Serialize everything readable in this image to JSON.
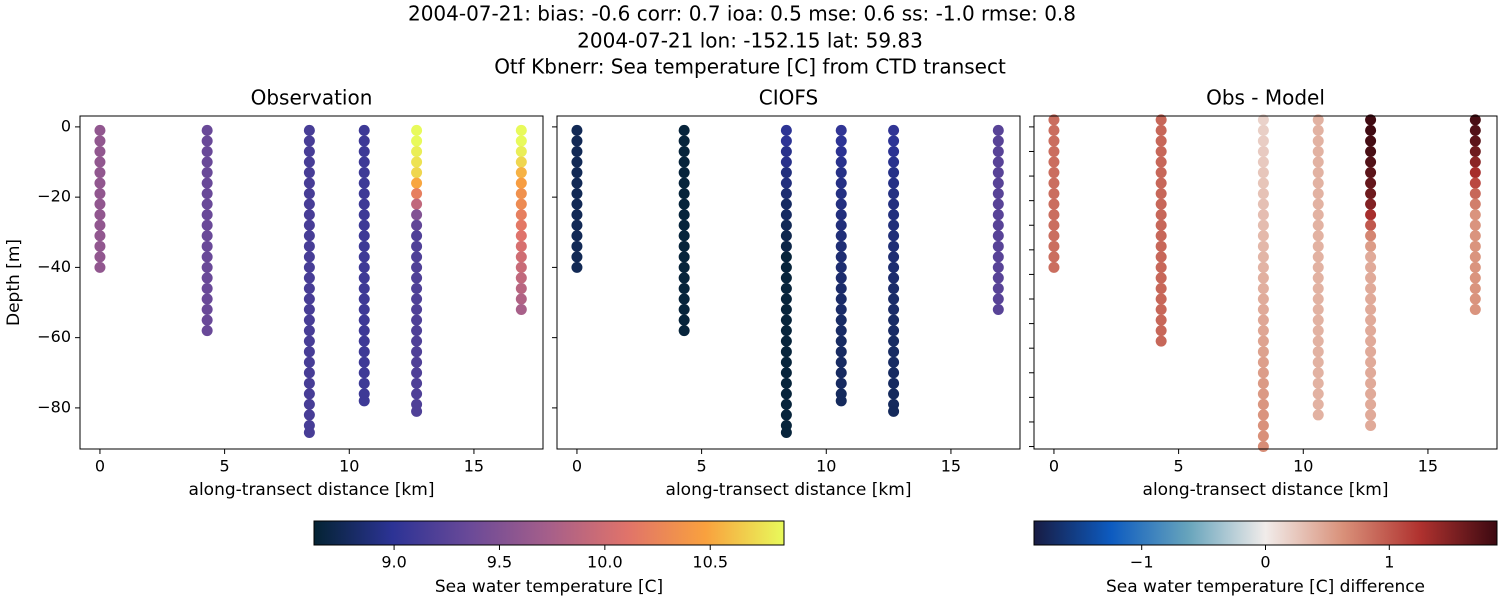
{
  "suptitle": [
    "2004-07-21: bias: -0.6  corr: 0.7  ioa: 0.5  mse: 0.6  ss: -1.0  rmse: 0.8",
    "2004-07-21 lon: -152.15 lat: 59.83",
    "Otf Kbnerr: Sea temperature [C] from CTD transect"
  ],
  "chart_data": [
    {
      "type": "scatter",
      "title": "Observation",
      "xlabel": "along-transect distance [km]",
      "ylabel": "Depth [m]",
      "xlim": [
        -0.8,
        17.77
      ],
      "ylim": [
        -91.7,
        3.1
      ],
      "xticks": [
        0,
        5,
        10,
        15
      ],
      "yticks": [
        0,
        {
          "value": -20,
          "label": "−20"
        },
        {
          "value": -40,
          "label": "−40"
        },
        {
          "value": -60,
          "label": "−60"
        },
        {
          "value": -80,
          "label": "−80"
        }
      ],
      "ytick_labels": true,
      "clim": [
        8.62,
        10.85
      ],
      "colormap": [
        "#042333",
        "#2c3395",
        "#6b4a98",
        "#a65f8a",
        "#e0736a",
        "#f9a13e",
        "#e8fa5b"
      ],
      "colorbar": {
        "label": "Sea water temperature [C]",
        "ticks": [
          {
            "value": 9,
            "label": "9.0"
          },
          9.5,
          {
            "value": 10,
            "label": "10.0"
          },
          10.5
        ]
      },
      "series": [
        {
          "x": 0,
          "y": [
            -1,
            -4,
            -7,
            -10,
            -13,
            -16,
            -19,
            -22,
            -25,
            -28,
            -31,
            -34,
            -37,
            -40
          ],
          "values": [
            9.6,
            9.6,
            9.6,
            9.6,
            9.6,
            9.6,
            9.6,
            9.6,
            9.6,
            9.6,
            9.6,
            9.6,
            9.6,
            9.6
          ]
        },
        {
          "x": 4.3,
          "y": [
            -1,
            -4,
            -7,
            -10,
            -13,
            -16,
            -19,
            -22,
            -25,
            -28,
            -31,
            -34,
            -37,
            -40,
            -43,
            -46,
            -49,
            -52,
            -55,
            -58
          ],
          "values": [
            9.35,
            9.35,
            9.35,
            9.35,
            9.35,
            9.35,
            9.35,
            9.35,
            9.35,
            9.35,
            9.35,
            9.35,
            9.35,
            9.35,
            9.35,
            9.35,
            9.35,
            9.35,
            9.35,
            9.35
          ]
        },
        {
          "x": 8.4,
          "y": [
            -1,
            -4,
            -7,
            -10,
            -13,
            -16,
            -19,
            -22,
            -25,
            -28,
            -31,
            -34,
            -37,
            -40,
            -43,
            -46,
            -49,
            -52,
            -55,
            -58,
            -61,
            -64,
            -67,
            -70,
            -73,
            -76,
            -79,
            -82,
            -85,
            -87
          ],
          "values": [
            9.15,
            9.15,
            9.15,
            9.15,
            9.15,
            9.15,
            9.15,
            9.15,
            9.15,
            9.15,
            9.15,
            9.15,
            9.15,
            9.15,
            9.15,
            9.15,
            9.15,
            9.15,
            9.15,
            9.15,
            9.15,
            9.15,
            9.15,
            9.15,
            9.15,
            9.15,
            9.15,
            9.15,
            9.15,
            9.15
          ]
        },
        {
          "x": 10.6,
          "y": [
            -1,
            -4,
            -7,
            -10,
            -13,
            -16,
            -19,
            -22,
            -25,
            -28,
            -31,
            -34,
            -37,
            -40,
            -43,
            -46,
            -49,
            -52,
            -55,
            -58,
            -61,
            -64,
            -67,
            -70,
            -73,
            -76,
            -78
          ],
          "values": [
            9.1,
            9.1,
            9.1,
            9.1,
            9.1,
            9.1,
            9.1,
            9.1,
            9.1,
            9.1,
            9.1,
            9.1,
            9.1,
            9.1,
            9.1,
            9.1,
            9.1,
            9.1,
            9.1,
            9.1,
            9.1,
            9.1,
            9.1,
            9.1,
            9.1,
            9.1,
            9.1
          ]
        },
        {
          "x": 12.7,
          "y": [
            -1,
            -4,
            -7,
            -10,
            -13,
            -16,
            -19,
            -22,
            -25,
            -28,
            -31,
            -34,
            -37,
            -40,
            -43,
            -46,
            -49,
            -52,
            -55,
            -58,
            -61,
            -64,
            -67,
            -70,
            -73,
            -76,
            -79,
            -81
          ],
          "values": [
            10.85,
            10.85,
            10.8,
            10.75,
            10.7,
            10.5,
            10.2,
            9.9,
            9.5,
            9.3,
            9.2,
            9.2,
            9.2,
            9.2,
            9.2,
            9.2,
            9.2,
            9.2,
            9.2,
            9.2,
            9.2,
            9.2,
            9.2,
            9.2,
            9.2,
            9.2,
            9.2,
            9.2
          ]
        },
        {
          "x": 16.9,
          "y": [
            -1,
            -4,
            -7,
            -10,
            -13,
            -16,
            -19,
            -22,
            -25,
            -28,
            -31,
            -34,
            -37,
            -40,
            -43,
            -46,
            -49,
            -52
          ],
          "values": [
            10.85,
            10.85,
            10.8,
            10.7,
            10.55,
            10.45,
            10.35,
            10.3,
            10.2,
            10.15,
            10.1,
            10.05,
            10.0,
            9.95,
            9.9,
            9.85,
            9.8,
            9.75
          ]
        }
      ]
    },
    {
      "type": "scatter",
      "title": "CIOFS",
      "xlabel": "along-transect distance [km]",
      "xlim": [
        -0.8,
        17.77
      ],
      "ylim": [
        -91.7,
        3.1
      ],
      "xticks": [
        0,
        5,
        10,
        15
      ],
      "yticks": [
        0,
        -20,
        -40,
        -60,
        -80
      ],
      "ytick_labels": false,
      "clim": [
        8.62,
        10.85
      ],
      "colormap": [
        "#042333",
        "#2c3395",
        "#6b4a98",
        "#a65f8a",
        "#e0736a",
        "#f9a13e",
        "#e8fa5b"
      ],
      "series": [
        {
          "x": 0,
          "y": [
            -1,
            -4,
            -7,
            -10,
            -13,
            -16,
            -19,
            -22,
            -25,
            -28,
            -31,
            -34,
            -37,
            -40
          ],
          "values": [
            8.75,
            8.75,
            8.75,
            8.75,
            8.75,
            8.75,
            8.75,
            8.75,
            8.75,
            8.75,
            8.75,
            8.75,
            8.75,
            8.75
          ]
        },
        {
          "x": 4.3,
          "y": [
            -1,
            -4,
            -7,
            -10,
            -13,
            -16,
            -19,
            -22,
            -25,
            -28,
            -31,
            -34,
            -37,
            -40,
            -43,
            -46,
            -49,
            -52,
            -55,
            -58
          ],
          "values": [
            8.65,
            8.65,
            8.65,
            8.65,
            8.65,
            8.65,
            8.65,
            8.65,
            8.65,
            8.65,
            8.65,
            8.65,
            8.65,
            8.65,
            8.65,
            8.65,
            8.65,
            8.65,
            8.65,
            8.65
          ]
        },
        {
          "x": 8.4,
          "y": [
            -1,
            -4,
            -7,
            -10,
            -13,
            -16,
            -19,
            -22,
            -25,
            -28,
            -31,
            -34,
            -37,
            -40,
            -43,
            -46,
            -49,
            -52,
            -55,
            -58,
            -61,
            -64,
            -67,
            -70,
            -73,
            -76,
            -79,
            -82,
            -85,
            -87
          ],
          "values": [
            9.0,
            9.0,
            8.95,
            8.95,
            8.9,
            8.9,
            8.85,
            8.8,
            8.8,
            8.75,
            8.72,
            8.7,
            8.65,
            8.65,
            8.65,
            8.65,
            8.65,
            8.65,
            8.65,
            8.65,
            8.65,
            8.65,
            8.65,
            8.65,
            8.65,
            8.65,
            8.65,
            8.65,
            8.65,
            8.65
          ]
        },
        {
          "x": 10.6,
          "y": [
            -1,
            -4,
            -7,
            -10,
            -13,
            -16,
            -19,
            -22,
            -25,
            -28,
            -31,
            -34,
            -37,
            -40,
            -43,
            -46,
            -49,
            -52,
            -55,
            -58,
            -61,
            -64,
            -67,
            -70,
            -73,
            -76,
            -78
          ],
          "values": [
            9.02,
            9.0,
            8.98,
            8.96,
            8.94,
            8.93,
            8.92,
            8.91,
            8.9,
            8.89,
            8.88,
            8.87,
            8.86,
            8.85,
            8.84,
            8.83,
            8.82,
            8.82,
            8.81,
            8.81,
            8.8,
            8.8,
            8.8,
            8.79,
            8.79,
            8.78,
            8.78
          ]
        },
        {
          "x": 12.7,
          "y": [
            -1,
            -4,
            -7,
            -10,
            -13,
            -16,
            -19,
            -22,
            -25,
            -28,
            -31,
            -34,
            -37,
            -40,
            -43,
            -46,
            -49,
            -52,
            -55,
            -58,
            -61,
            -64,
            -67,
            -70,
            -73,
            -76,
            -79,
            -81
          ],
          "values": [
            9.02,
            9.0,
            8.98,
            8.96,
            8.94,
            8.93,
            8.92,
            8.91,
            8.9,
            8.89,
            8.88,
            8.87,
            8.86,
            8.85,
            8.84,
            8.83,
            8.82,
            8.82,
            8.81,
            8.81,
            8.8,
            8.8,
            8.8,
            8.79,
            8.79,
            8.78,
            8.78,
            8.77
          ]
        },
        {
          "x": 16.9,
          "y": [
            -1,
            -4,
            -7,
            -10,
            -13,
            -16,
            -19,
            -22,
            -25,
            -28,
            -31,
            -34,
            -37,
            -40,
            -43,
            -46,
            -49,
            -52
          ],
          "values": [
            9.25,
            9.25,
            9.25,
            9.25,
            9.25,
            9.25,
            9.25,
            9.25,
            9.25,
            9.25,
            9.25,
            9.25,
            9.25,
            9.25,
            9.25,
            9.25,
            9.25,
            9.25
          ]
        }
      ]
    },
    {
      "type": "scatter",
      "title": "Obs - Model",
      "xlabel": "along-transect distance [km]",
      "xlim": [
        -0.8,
        17.77
      ],
      "ylim": [
        -91.7,
        3.1
      ],
      "xticks": [
        0,
        5,
        10,
        15
      ],
      "yticks": [
        0,
        -7,
        -14,
        -21,
        -28,
        -35,
        -42,
        -49,
        -56,
        -63,
        -70,
        -77,
        -84,
        -91
      ],
      "ytick_labels": false,
      "clim": [
        -1.87,
        1.87
      ],
      "colormap": [
        "#181c43",
        "#0d5bc0",
        "#67a4bc",
        "#f1ecea",
        "#d9917a",
        "#b0322f",
        "#3c0911"
      ],
      "colorbar": {
        "label": "Sea water temperature [C] difference",
        "ticks": [
          {
            "value": -1,
            "label": "−1"
          },
          0,
          1
        ]
      },
      "series": [
        {
          "x": 0,
          "y": [
            2,
            -1,
            -4,
            -7,
            -10,
            -13,
            -16,
            -19,
            -22,
            -25,
            -28,
            -31,
            -34,
            -37,
            -40
          ],
          "values": [
            0.85,
            0.85,
            0.85,
            0.85,
            0.85,
            0.85,
            0.85,
            0.85,
            0.85,
            0.85,
            0.85,
            0.85,
            0.85,
            0.85,
            0.85
          ]
        },
        {
          "x": 4.3,
          "y": [
            2,
            -1,
            -4,
            -7,
            -10,
            -13,
            -16,
            -19,
            -22,
            -25,
            -28,
            -31,
            -34,
            -37,
            -40,
            -43,
            -46,
            -49,
            -52,
            -55,
            -58,
            -61
          ],
          "values": [
            0.9,
            0.9,
            0.9,
            0.9,
            0.9,
            0.9,
            0.9,
            0.9,
            0.9,
            0.9,
            0.9,
            0.9,
            0.9,
            0.9,
            0.9,
            0.9,
            0.9,
            0.9,
            0.9,
            0.9,
            0.9,
            0.9
          ]
        },
        {
          "x": 8.4,
          "y": [
            2,
            -1,
            -4,
            -7,
            -10,
            -13,
            -16,
            -19,
            -22,
            -25,
            -28,
            -31,
            -34,
            -37,
            -40,
            -43,
            -46,
            -49,
            -52,
            -55,
            -58,
            -61,
            -64,
            -67,
            -70,
            -73,
            -76,
            -79,
            -82,
            -85,
            -88,
            -91
          ],
          "values": [
            0.18,
            0.2,
            0.21,
            0.23,
            0.24,
            0.26,
            0.27,
            0.29,
            0.3,
            0.32,
            0.33,
            0.35,
            0.36,
            0.38,
            0.39,
            0.41,
            0.42,
            0.44,
            0.45,
            0.47,
            0.48,
            0.5,
            0.51,
            0.53,
            0.54,
            0.56,
            0.57,
            0.59,
            0.6,
            0.62,
            0.63,
            0.65
          ]
        },
        {
          "x": 10.6,
          "y": [
            2,
            -1,
            -4,
            -7,
            -10,
            -13,
            -16,
            -19,
            -22,
            -25,
            -28,
            -31,
            -34,
            -37,
            -40,
            -43,
            -46,
            -49,
            -52,
            -55,
            -58,
            -61,
            -64,
            -67,
            -70,
            -73,
            -76,
            -79,
            -82
          ],
          "values": [
            0.4,
            0.4,
            0.4,
            0.4,
            0.4,
            0.4,
            0.4,
            0.4,
            0.4,
            0.4,
            0.4,
            0.4,
            0.4,
            0.4,
            0.4,
            0.4,
            0.4,
            0.4,
            0.4,
            0.4,
            0.4,
            0.4,
            0.4,
            0.4,
            0.4,
            0.4,
            0.4,
            0.4,
            0.4
          ]
        },
        {
          "x": 12.7,
          "y": [
            2,
            -1,
            -4,
            -7,
            -10,
            -13,
            -16,
            -19,
            -22,
            -25,
            -28,
            -31,
            -34,
            -37,
            -40,
            -43,
            -46,
            -49,
            -52,
            -55,
            -58,
            -61,
            -64,
            -67,
            -70,
            -73,
            -76,
            -79,
            -82,
            -85
          ],
          "values": [
            1.85,
            1.85,
            1.82,
            1.8,
            1.75,
            1.7,
            1.65,
            1.6,
            1.5,
            1.3,
            1.0,
            0.7,
            0.55,
            0.45,
            0.45,
            0.45,
            0.45,
            0.45,
            0.45,
            0.45,
            0.45,
            0.45,
            0.45,
            0.45,
            0.45,
            0.45,
            0.45,
            0.45,
            0.45,
            0.45
          ]
        },
        {
          "x": 16.9,
          "y": [
            2,
            -1,
            -4,
            -7,
            -10,
            -13,
            -16,
            -19,
            -22,
            -25,
            -28,
            -31,
            -34,
            -37,
            -40,
            -43,
            -46,
            -49,
            -52
          ],
          "values": [
            1.8,
            1.75,
            1.7,
            1.6,
            1.45,
            1.3,
            1.1,
            0.9,
            0.75,
            0.6,
            0.6,
            0.6,
            0.6,
            0.6,
            0.6,
            0.6,
            0.6,
            0.6,
            0.6
          ]
        }
      ]
    }
  ]
}
